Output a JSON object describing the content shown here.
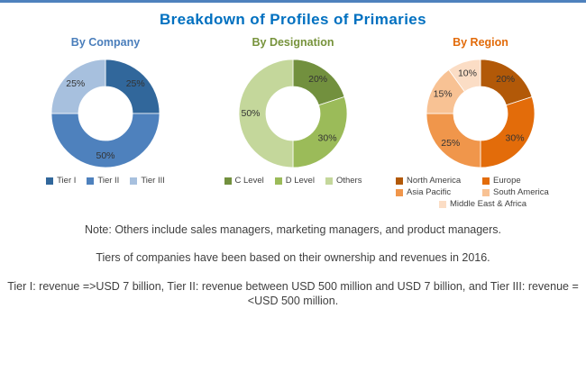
{
  "page": {
    "title": "Breakdown of Profiles of Primaries",
    "title_color": "#0070C0",
    "top_rule_color": "#4E81BD"
  },
  "chart_data": [
    {
      "id": "by-company",
      "type": "pie",
      "donut": true,
      "title": "By Company",
      "title_color": "#4A7EBB",
      "labels": [
        "Tier I",
        "Tier II",
        "Tier III"
      ],
      "values": [
        25,
        50,
        25
      ],
      "unit": "%",
      "colors": [
        "#31679B",
        "#4E81BD",
        "#A7C0DE"
      ],
      "legend_position": "bottom",
      "legend_columns": 3
    },
    {
      "id": "by-designation",
      "type": "pie",
      "donut": true,
      "title": "By Designation",
      "title_color": "#77933C",
      "labels": [
        "C Level",
        "D Level",
        "Others"
      ],
      "values": [
        20,
        30,
        50
      ],
      "unit": "%",
      "colors": [
        "#72903E",
        "#9BBB59",
        "#C4D79B"
      ],
      "legend_position": "bottom",
      "legend_columns": 3
    },
    {
      "id": "by-region",
      "type": "pie",
      "donut": true,
      "title": "By Region",
      "title_color": "#E26B0A",
      "labels": [
        "North America",
        "Europe",
        "Asia Pacific",
        "South America",
        "Middle East & Africa"
      ],
      "values": [
        20,
        30,
        25,
        15,
        10
      ],
      "unit": "%",
      "colors": [
        "#B25908",
        "#E36C0A",
        "#F0964B",
        "#F8C294",
        "#FBDDC5"
      ],
      "legend_position": "bottom",
      "legend_columns": 2
    }
  ],
  "notes": [
    "Note: Others include sales managers, marketing managers, and product managers.",
    "Tiers of companies have been based on their ownership and revenues in 2016.",
    "Tier I: revenue =>USD 7 billion, Tier II: revenue between USD 500 million and USD 7 billion, and Tier III: revenue =<USD 500 million."
  ]
}
